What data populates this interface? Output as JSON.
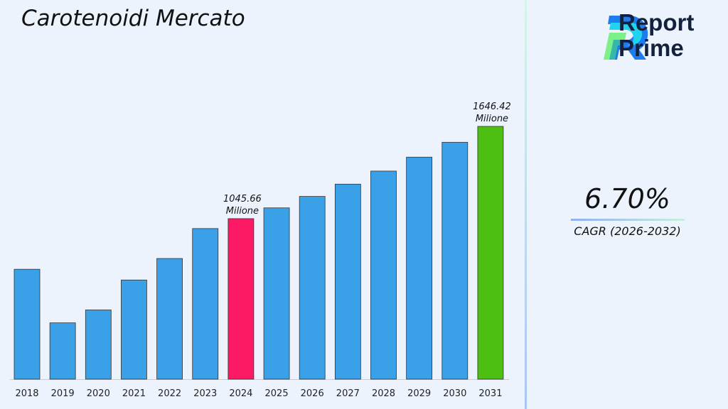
{
  "title": "Carotenoidi Mercato",
  "brand": {
    "line1": "Report",
    "line2": "Prime"
  },
  "cagr": {
    "value": "6.70%",
    "label": "CAGR (2026-2032)"
  },
  "chart_data": {
    "type": "bar",
    "title": "Carotenoidi Mercato",
    "categories": [
      "2018",
      "2019",
      "2020",
      "2021",
      "2022",
      "2023",
      "2024",
      "2025",
      "2026",
      "2027",
      "2028",
      "2029",
      "2030",
      "2031"
    ],
    "values": [
      716,
      367,
      451,
      646,
      786,
      981,
      1045.66,
      1115.8,
      1190.5,
      1270.3,
      1355.4,
      1446.2,
      1543.1,
      1646.42
    ],
    "colors": [
      "#3aa0e8",
      "#3aa0e8",
      "#3aa0e8",
      "#3aa0e8",
      "#3aa0e8",
      "#3aa0e8",
      "#fc1a64",
      "#3aa0e8",
      "#3aa0e8",
      "#3aa0e8",
      "#3aa0e8",
      "#3aa0e8",
      "#3aa0e8",
      "#4cbf12"
    ],
    "annotations": [
      {
        "category": "2024",
        "value_text": "1045.66",
        "unit": "Milione"
      },
      {
        "category": "2031",
        "value_text": "1646.42",
        "unit": "Milione"
      }
    ],
    "ylim": [
      0,
      1646.42
    ],
    "grid": false,
    "legend": "none"
  }
}
